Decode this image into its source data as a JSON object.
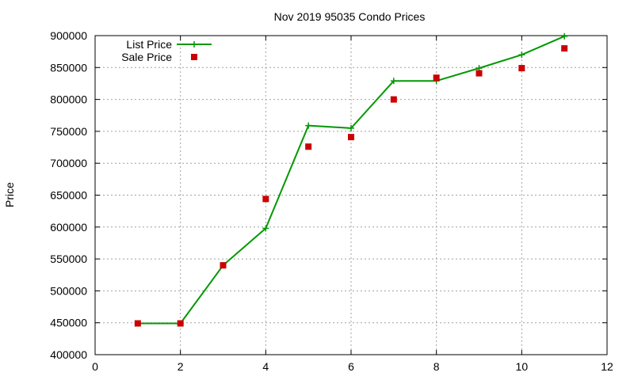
{
  "chart_data": {
    "type": "line",
    "title": "Nov 2019 95035 Condo Prices",
    "xlabel": "",
    "ylabel": "Price",
    "xlim": [
      0,
      12
    ],
    "ylim": [
      400000,
      900000
    ],
    "x_ticks": [
      "0",
      "2",
      "4",
      "6",
      "8",
      "10",
      "12"
    ],
    "y_ticks": [
      "400000",
      "450000",
      "500000",
      "550000",
      "600000",
      "650000",
      "700000",
      "750000",
      "800000",
      "850000",
      "900000"
    ],
    "grid": true,
    "legend_position": "top-left",
    "series": [
      {
        "name": "List Price",
        "style": "line-with-plus-markers",
        "color": "#009900",
        "x": [
          1,
          2,
          3,
          4,
          5,
          6,
          7,
          8,
          9,
          10,
          11
        ],
        "y": [
          449000,
          449000,
          540000,
          598000,
          759000,
          755000,
          829000,
          829000,
          849000,
          870000,
          899000
        ]
      },
      {
        "name": "Sale Price",
        "style": "square-points",
        "color": "#cc0000",
        "x": [
          1,
          2,
          3,
          4,
          5,
          6,
          7,
          8,
          9,
          10,
          11
        ],
        "y": [
          449000,
          449000,
          540000,
          644000,
          726000,
          741000,
          800000,
          834000,
          841000,
          849000,
          880000
        ]
      }
    ]
  }
}
